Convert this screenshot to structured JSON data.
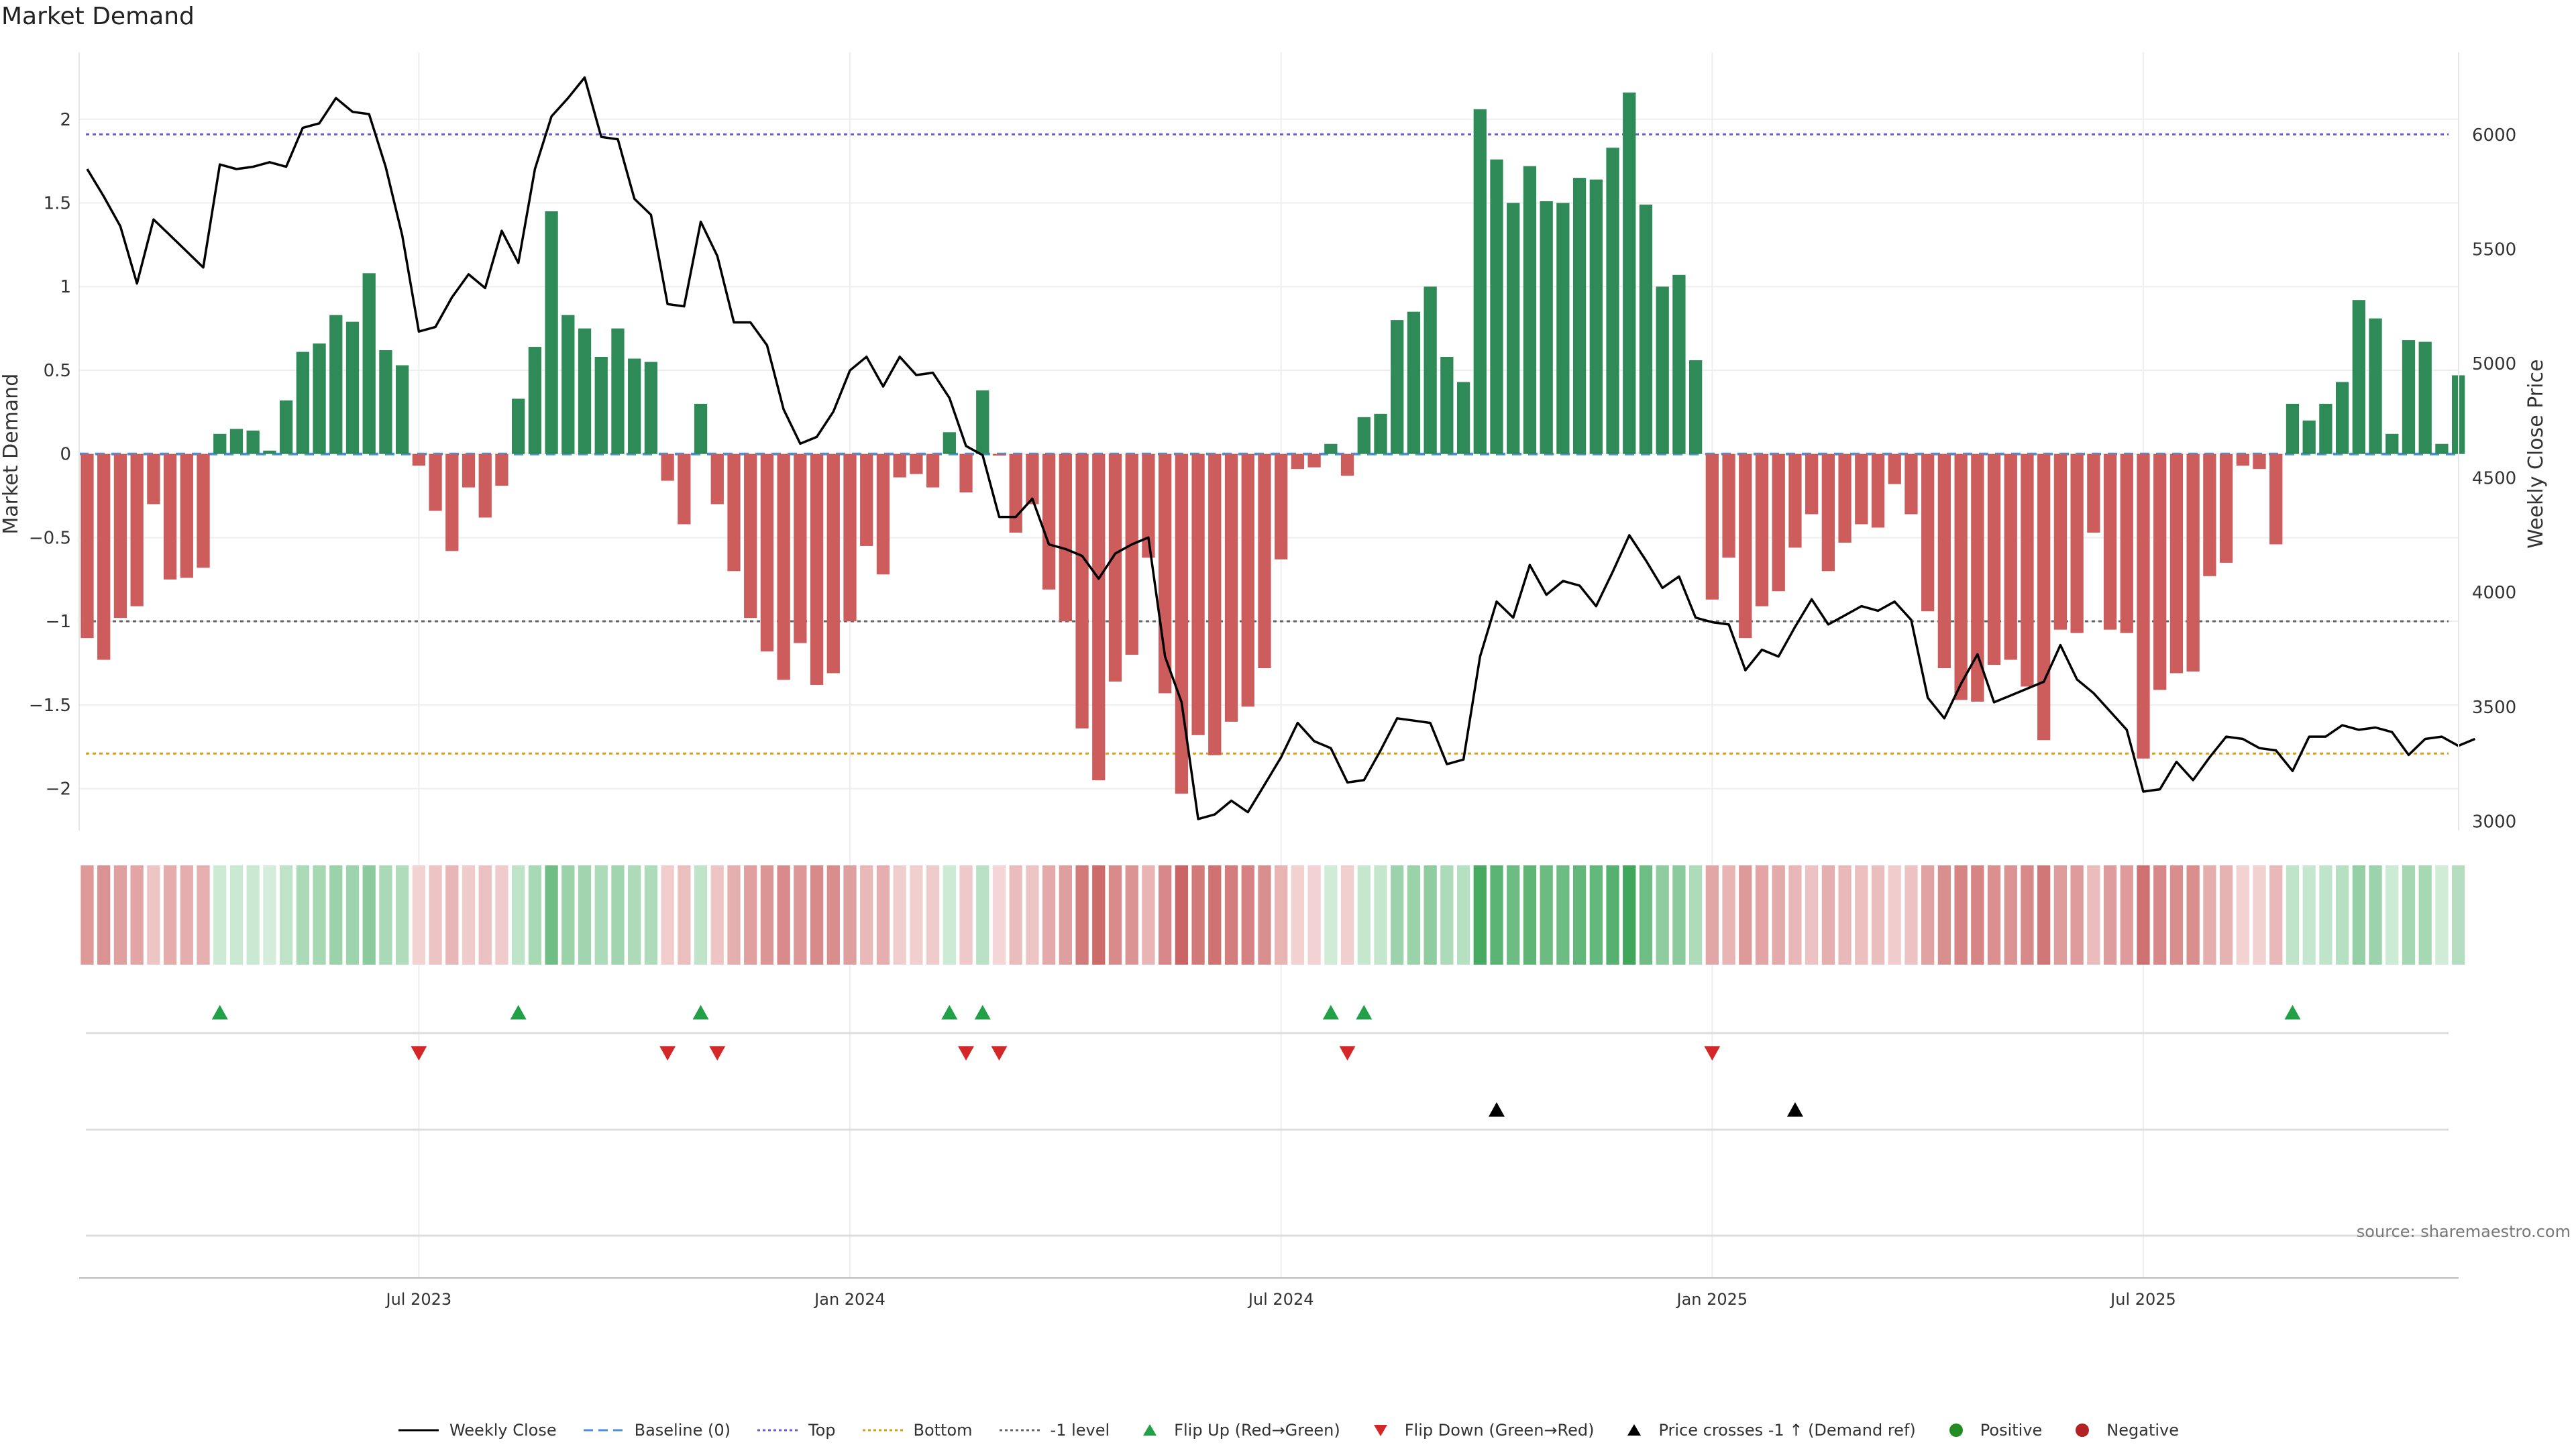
{
  "title": "Market Demand",
  "source": "source: sharemaestro.com",
  "colors": {
    "positive": "#2e8b57",
    "negative": "#cd5c5c",
    "price": "#000000",
    "top": "#6a5acd",
    "bottom": "#d4a017",
    "minus1": "#666666",
    "flip_up": "#22a047",
    "flip_down": "#d62728",
    "cross": "#000000"
  },
  "chart_data": {
    "type": "bar",
    "title": "Market Demand",
    "ylabel": "Market Demand",
    "y2label": "Weekly Close Price",
    "ylim": [
      -2.25,
      2.4
    ],
    "y2lim": [
      2960,
      6360
    ],
    "yticks": [
      2,
      1.5,
      1,
      0.5,
      0,
      -0.5,
      -1,
      -1.5,
      -2
    ],
    "ytick_labels": [
      "2",
      "1.5",
      "1",
      "0.5",
      "0",
      "−0.5",
      "−1",
      "−1.5",
      "−2"
    ],
    "y2ticks": [
      6000,
      5500,
      5000,
      4500,
      4000,
      3500,
      3000
    ],
    "y2tick_labels": [
      "6000",
      "5500",
      "5000",
      "4500",
      "4000",
      "3500",
      "3000"
    ],
    "xticks": [
      20,
      46,
      72,
      98,
      124
    ],
    "xtick_labels": [
      "Jul 2023",
      "Jan 2024",
      "Jul 2024",
      "Jan 2025",
      "Jul 2025"
    ],
    "grid": true,
    "legend_position": "bottom",
    "levels": {
      "top": 1.91,
      "bottom": -1.79,
      "minus1": -1.0,
      "baseline": 0
    },
    "demand": [
      -1.1,
      -1.23,
      -0.98,
      -0.91,
      -0.3,
      -0.75,
      -0.74,
      -0.68,
      0.12,
      0.15,
      0.14,
      0.02,
      0.32,
      0.61,
      0.66,
      0.83,
      0.79,
      1.08,
      0.62,
      0.53,
      -0.07,
      -0.34,
      -0.58,
      -0.2,
      -0.38,
      -0.19,
      0.33,
      0.64,
      1.45,
      0.83,
      0.75,
      0.58,
      0.75,
      0.57,
      0.55,
      -0.16,
      -0.42,
      0.3,
      -0.3,
      -0.7,
      -0.98,
      -1.18,
      -1.35,
      -1.13,
      -1.38,
      -1.31,
      -1.0,
      -0.55,
      -0.72,
      -0.14,
      -0.12,
      -0.2,
      0.13,
      -0.23,
      0.38,
      -0.01,
      -0.47,
      -0.3,
      -0.81,
      -1.0,
      -1.64,
      -1.95,
      -1.36,
      -1.2,
      -0.62,
      -1.43,
      -2.03,
      -1.68,
      -1.8,
      -1.6,
      -1.51,
      -1.28,
      -0.63,
      -0.09,
      -0.08,
      0.06,
      -0.13,
      0.22,
      0.24,
      0.8,
      0.85,
      1.0,
      0.58,
      0.43,
      2.06,
      1.76,
      1.5,
      1.72,
      1.51,
      1.5,
      1.65,
      1.64,
      1.83,
      2.16,
      1.49,
      1.0,
      1.07,
      0.56,
      -0.87,
      -0.62,
      -1.1,
      -0.91,
      -0.82,
      -0.56,
      -0.36,
      -0.7,
      -0.53,
      -0.42,
      -0.44,
      -0.18,
      -0.36,
      -0.94,
      -1.28,
      -1.47,
      -1.48,
      -1.26,
      -1.23,
      -1.39,
      -1.71,
      -1.05,
      -1.07,
      -0.47,
      -1.05,
      -1.07,
      -1.82,
      -1.41,
      -1.31,
      -1.3,
      -0.73,
      -0.65,
      -0.07,
      -0.09,
      -0.54,
      0.3,
      0.2,
      0.3,
      0.43,
      0.92,
      0.81,
      0.12,
      0.68,
      0.67,
      0.06,
      0.47
    ],
    "price": [
      5850,
      5730,
      5600,
      5350,
      5630,
      5560,
      5490,
      5420,
      5870,
      5850,
      5860,
      5880,
      5860,
      6030,
      6050,
      6160,
      6100,
      6090,
      5860,
      5560,
      5140,
      5160,
      5290,
      5390,
      5330,
      5580,
      5440,
      5850,
      6080,
      6160,
      6250,
      5990,
      5980,
      5720,
      5650,
      5260,
      5250,
      5620,
      5470,
      5180,
      5180,
      5080,
      4800,
      4650,
      4680,
      4790,
      4970,
      5030,
      4900,
      5030,
      4950,
      4960,
      4850,
      4640,
      4600,
      4330,
      4330,
      4410,
      4210,
      4190,
      4160,
      4060,
      4170,
      4210,
      4240,
      3720,
      3520,
      3010,
      3030,
      3090,
      3040,
      3160,
      3280,
      3430,
      3350,
      3320,
      3170,
      3180,
      3310,
      3450,
      3440,
      3430,
      3250,
      3270,
      3720,
      3960,
      3890,
      4120,
      3990,
      4050,
      4030,
      3940,
      4090,
      4250,
      4140,
      4020,
      4070,
      3890,
      3870,
      3860,
      3660,
      3750,
      3720,
      3850,
      3970,
      3860,
      3900,
      3940,
      3920,
      3960,
      3880,
      3540,
      3450,
      3600,
      3730,
      3520,
      3550,
      3580,
      3610,
      3770,
      3620,
      3560,
      3480,
      3400,
      3130,
      3140,
      3260,
      3180,
      3280,
      3370,
      3360,
      3320,
      3310,
      3220,
      3370,
      3370,
      3420,
      3400,
      3410,
      3390,
      3290,
      3360,
      3370,
      3330,
      3360
    ],
    "flip_up": [
      8,
      26,
      37,
      52,
      54,
      75,
      77,
      133
    ],
    "flip_down": [
      20,
      35,
      38,
      53,
      55,
      76,
      98
    ],
    "price_cross_up": [
      85,
      103
    ],
    "legend": [
      "Weekly Close",
      "Baseline (0)",
      "Top",
      "Bottom",
      "-1 level",
      "Flip Up (Red→Green)",
      "Flip Down (Green→Red)",
      "Price crosses -1 ↑ (Demand ref)",
      "Positive",
      "Negative"
    ]
  }
}
